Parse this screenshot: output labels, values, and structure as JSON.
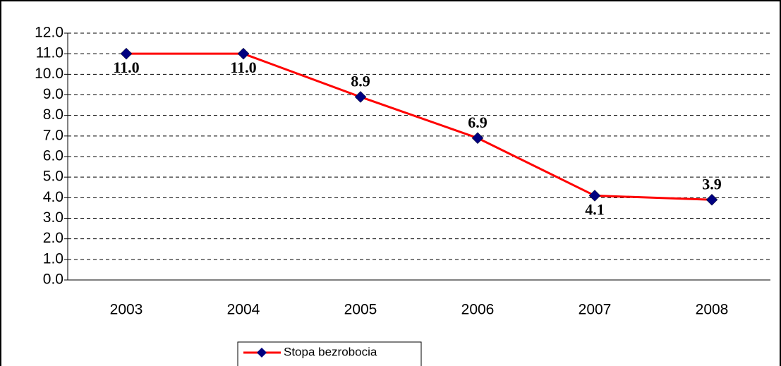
{
  "chart_data": {
    "type": "line",
    "categories": [
      "2003",
      "2004",
      "2005",
      "2006",
      "2007",
      "2008"
    ],
    "series": [
      {
        "name": "Stopa bezrobocia",
        "color": "#ff0000",
        "marker_color": "#000080",
        "values": [
          11.0,
          11.0,
          8.9,
          6.9,
          4.1,
          3.9
        ],
        "value_labels": [
          "11.0",
          "11.0",
          "8.9",
          "6.9",
          "4.1",
          "3.9"
        ]
      }
    ],
    "ylim": [
      0,
      12
    ],
    "yticks": [
      {
        "value": 0,
        "label": "0.0"
      },
      {
        "value": 1,
        "label": "1.0"
      },
      {
        "value": 2,
        "label": "2.0"
      },
      {
        "value": 3,
        "label": "3.0"
      },
      {
        "value": 4,
        "label": "4.0"
      },
      {
        "value": 5,
        "label": "5.0"
      },
      {
        "value": 6,
        "label": "6.0"
      },
      {
        "value": 7,
        "label": "7.0"
      },
      {
        "value": 8,
        "label": "8.0"
      },
      {
        "value": 9,
        "label": "9.0"
      },
      {
        "value": 10,
        "label": "10.0"
      },
      {
        "value": 11,
        "label": "11.0"
      },
      {
        "value": 12,
        "label": "12.0"
      }
    ],
    "grid": true,
    "legend": "bottom"
  }
}
